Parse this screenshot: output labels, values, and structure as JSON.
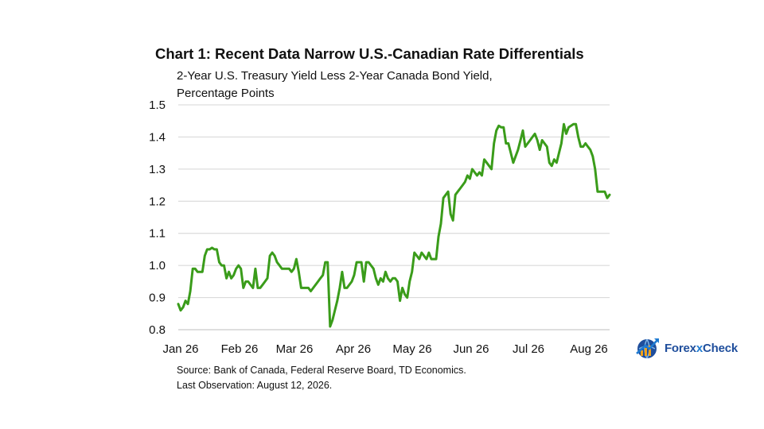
{
  "title": "Chart 1: Recent Data Narrow U.S.-Canadian Rate Differentials",
  "subtitle_line1": "2-Year U.S. Treasury Yield Less 2-Year Canada Bond Yield,",
  "subtitle_line2": "Percentage Points",
  "source": "Source: Bank of Canada, Federal Reserve Board, TD Economics.",
  "last_observation": "Last Observation: August 12, 2026.",
  "logo": {
    "text_pre": "Forex",
    "text_x": "x",
    "text_post": "Check",
    "icon": "globe-arrow-icon"
  },
  "colors": {
    "line": "#3a9c1a",
    "grid": "#d4d4d4",
    "logo_blue": "#1f4e9c"
  },
  "chart_data": {
    "type": "line",
    "title": "Chart 1: Recent Data Narrow U.S.-Canadian Rate Differentials",
    "ylabel": "2-Year U.S. Treasury Yield Less 2-Year Canada Bond Yield, Percentage Points",
    "xlabel": "",
    "ylim": [
      0.8,
      1.5
    ],
    "yticks": [
      "0.8",
      "0.9",
      "1.0",
      "1.1",
      "1.2",
      "1.3",
      "1.4",
      "1.5"
    ],
    "xticks": [
      "Jan 26",
      "Feb 26",
      "Mar 26",
      "Apr 26",
      "May 26",
      "Jun 26",
      "Jul 26",
      "Aug 26"
    ],
    "grid": "horizontal",
    "legend": "none",
    "series": [
      {
        "values": [
          0.88,
          0.86,
          0.87,
          0.89,
          0.88,
          0.92,
          0.99,
          0.99,
          0.98,
          0.98,
          0.98,
          1.03,
          1.05,
          1.05,
          1.055,
          1.05,
          1.05,
          1.01,
          1.0,
          1.0,
          0.96,
          0.98,
          0.96,
          0.97,
          0.99,
          1.0,
          0.99,
          0.93,
          0.95,
          0.95,
          0.94,
          0.93,
          0.99,
          0.93,
          0.93,
          0.94,
          0.95,
          0.96,
          1.03,
          1.04,
          1.03,
          1.01,
          1.0,
          0.99,
          0.99,
          0.99,
          0.99,
          0.98,
          0.99,
          1.02,
          0.98,
          0.93,
          0.93,
          0.93,
          0.93,
          0.92,
          0.93,
          0.94,
          0.95,
          0.96,
          0.97,
          1.01,
          1.01,
          0.81,
          0.83,
          0.86,
          0.89,
          0.93,
          0.98,
          0.93,
          0.93,
          0.94,
          0.95,
          0.97,
          1.01,
          1.01,
          1.01,
          0.95,
          1.01,
          1.01,
          1.0,
          0.99,
          0.96,
          0.94,
          0.96,
          0.95,
          0.98,
          0.96,
          0.95,
          0.96,
          0.96,
          0.95,
          0.89,
          0.93,
          0.91,
          0.9,
          0.95,
          0.98,
          1.04,
          1.03,
          1.02,
          1.04,
          1.03,
          1.02,
          1.04,
          1.02,
          1.02,
          1.02,
          1.09,
          1.13,
          1.21,
          1.22,
          1.23,
          1.16,
          1.14,
          1.22,
          1.23,
          1.24,
          1.25,
          1.26,
          1.28,
          1.27,
          1.3,
          1.29,
          1.28,
          1.29,
          1.28,
          1.33,
          1.32,
          1.31,
          1.3,
          1.38,
          1.42,
          1.435,
          1.43,
          1.43,
          1.38,
          1.38,
          1.35,
          1.32,
          1.34,
          1.36,
          1.39,
          1.42,
          1.37,
          1.38,
          1.39,
          1.4,
          1.41,
          1.39,
          1.36,
          1.39,
          1.38,
          1.37,
          1.32,
          1.31,
          1.33,
          1.32,
          1.35,
          1.38,
          1.44,
          1.41,
          1.43,
          1.435,
          1.44,
          1.44,
          1.4,
          1.37,
          1.37,
          1.38,
          1.37,
          1.36,
          1.34,
          1.3,
          1.23,
          1.23,
          1.23,
          1.23,
          1.21,
          1.22
        ]
      }
    ]
  }
}
